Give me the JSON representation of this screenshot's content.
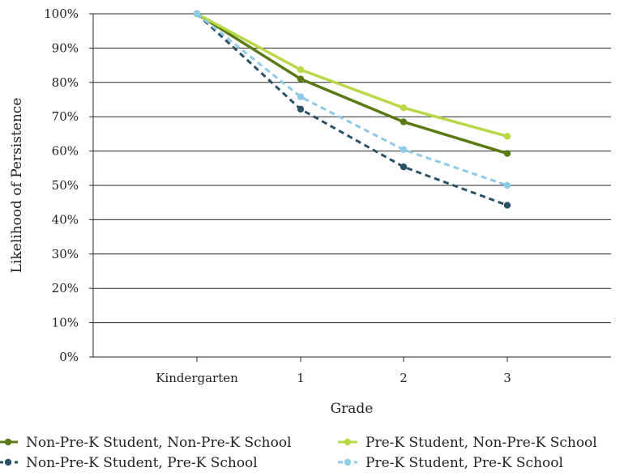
{
  "chart_data": {
    "type": "line",
    "title": "",
    "xlabel": "Grade",
    "ylabel": "Likelihood of Persistence",
    "categories": [
      "Kindergarten",
      "1",
      "2",
      "3"
    ],
    "ylim": [
      0,
      100
    ],
    "yticks": [
      "0%",
      "10%",
      "20%",
      "30%",
      "40%",
      "50%",
      "60%",
      "70%",
      "80%",
      "90%",
      "100%"
    ],
    "grid": true,
    "legend_position": "bottom",
    "series": [
      {
        "name": "Non-Pre-K Student, Non-Pre-K School",
        "values": [
          100,
          81,
          68.5,
          59.3
        ],
        "color": "#5a7a14",
        "dashed": false
      },
      {
        "name": "Pre-K Student, Non-Pre-K School",
        "values": [
          100,
          83.7,
          72.6,
          64.3
        ],
        "color": "#b9d848",
        "dashed": false
      },
      {
        "name": "Non-Pre-K Student, Pre-K School",
        "values": [
          100,
          72.2,
          55.4,
          44.2
        ],
        "color": "#2a5266",
        "dashed": true
      },
      {
        "name": "Pre-K Student, Pre-K School",
        "values": [
          100,
          75.8,
          60.4,
          50
        ],
        "color": "#8ecbe6",
        "dashed": true
      }
    ]
  }
}
